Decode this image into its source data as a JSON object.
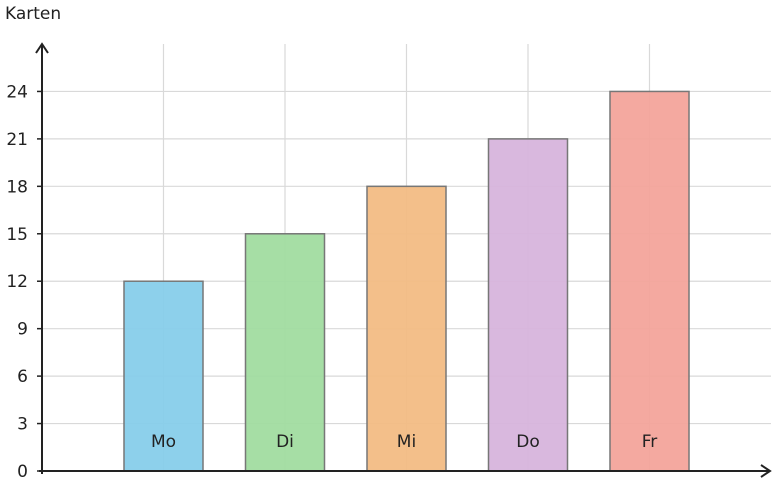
{
  "chart_data": {
    "type": "bar",
    "y_label": "Karten",
    "categories": [
      "Mo",
      "Di",
      "Mi",
      "Do",
      "Fr"
    ],
    "values": [
      12,
      15,
      18,
      21,
      24
    ],
    "colors": [
      "#87ceea",
      "#a1dca0",
      "#f2bc84",
      "#d7b4dc",
      "#f3a49b"
    ],
    "ylim": [
      0,
      27
    ],
    "yticks": [
      0,
      3,
      6,
      9,
      12,
      15,
      18,
      21,
      24
    ],
    "grid": true
  }
}
